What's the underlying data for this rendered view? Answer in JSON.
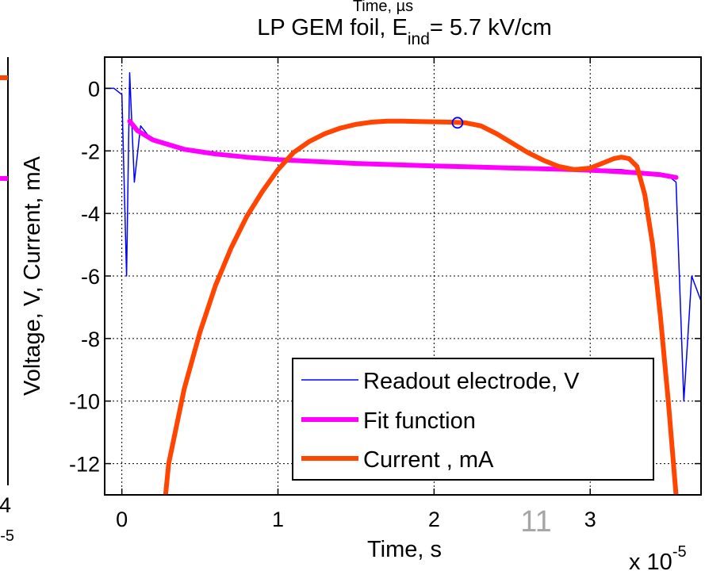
{
  "chart_data": {
    "type": "line",
    "title_main": "LP GEM foil, E",
    "title_sub": "ind",
    "title_rest": "= 5.7 kV/cm",
    "clipped_top_label": "Time, µs",
    "xlabel": "Time, s",
    "ylabel": "Voltage, V, Current, mA",
    "x_multiplier_base": "x 10",
    "x_multiplier_exp": "-5",
    "xlim": [
      -0.11,
      3.71
    ],
    "ylim": [
      -13,
      1
    ],
    "x_ticks": [
      "0",
      "1",
      "2",
      "3"
    ],
    "y_ticks": [
      "0",
      "-2",
      "-4",
      "-6",
      "-8",
      "-10",
      "-12"
    ],
    "grid": true,
    "legend_position": "bottom-right",
    "colors": {
      "readout": "#0000ff",
      "fit": "#ff00ff",
      "current": "#ff4500",
      "marker": "#0000ff"
    },
    "series": [
      {
        "name": "Readout electrode, V",
        "x": [
          -0.11,
          -0.05,
          0.0,
          0.03,
          0.05,
          0.08,
          0.12,
          0.2,
          0.4,
          0.8,
          1.2,
          1.6,
          2.0,
          2.4,
          2.8,
          3.2,
          3.5,
          3.55,
          3.6,
          3.65,
          3.71
        ],
        "y": [
          0.0,
          0.0,
          -0.2,
          -6.0,
          0.5,
          -3.0,
          -1.2,
          -1.7,
          -2.0,
          -2.2,
          -2.35,
          -2.4,
          -2.45,
          -2.5,
          -2.55,
          -2.6,
          -2.8,
          -3.0,
          -10.0,
          -6.0,
          -6.8
        ]
      },
      {
        "name": "Fit function",
        "x": [
          0.05,
          0.1,
          0.2,
          0.4,
          0.6,
          0.8,
          1.0,
          1.2,
          1.5,
          1.8,
          2.0,
          2.3,
          2.6,
          2.9,
          3.1,
          3.3,
          3.45,
          3.55
        ],
        "y": [
          -1.05,
          -1.35,
          -1.65,
          -1.95,
          -2.1,
          -2.2,
          -2.28,
          -2.33,
          -2.4,
          -2.45,
          -2.48,
          -2.52,
          -2.56,
          -2.6,
          -2.64,
          -2.7,
          -2.76,
          -2.85
        ]
      },
      {
        "name": "Current , mA",
        "x": [
          0.28,
          0.3,
          0.4,
          0.5,
          0.6,
          0.7,
          0.8,
          0.9,
          1.0,
          1.1,
          1.2,
          1.3,
          1.4,
          1.5,
          1.6,
          1.7,
          1.8,
          1.9,
          2.0,
          2.1,
          2.2,
          2.3,
          2.4,
          2.5,
          2.6,
          2.7,
          2.8,
          2.9,
          3.0,
          3.1,
          3.15,
          3.2,
          3.25,
          3.3,
          3.35,
          3.4,
          3.45,
          3.5,
          3.55
        ],
        "y": [
          -13.0,
          -12.0,
          -9.6,
          -7.8,
          -6.3,
          -5.1,
          -4.1,
          -3.3,
          -2.6,
          -2.05,
          -1.7,
          -1.45,
          -1.27,
          -1.15,
          -1.08,
          -1.05,
          -1.05,
          -1.06,
          -1.07,
          -1.08,
          -1.1,
          -1.2,
          -1.45,
          -1.75,
          -2.05,
          -2.3,
          -2.5,
          -2.6,
          -2.55,
          -2.35,
          -2.25,
          -2.2,
          -2.25,
          -2.5,
          -3.4,
          -5.0,
          -7.3,
          -10.0,
          -13.0
        ]
      }
    ],
    "marker": {
      "x": 2.15,
      "y": -1.1
    },
    "slide_number": "11",
    "left_panel_fragments": {
      "tick": "4",
      "exp": "-5"
    }
  }
}
